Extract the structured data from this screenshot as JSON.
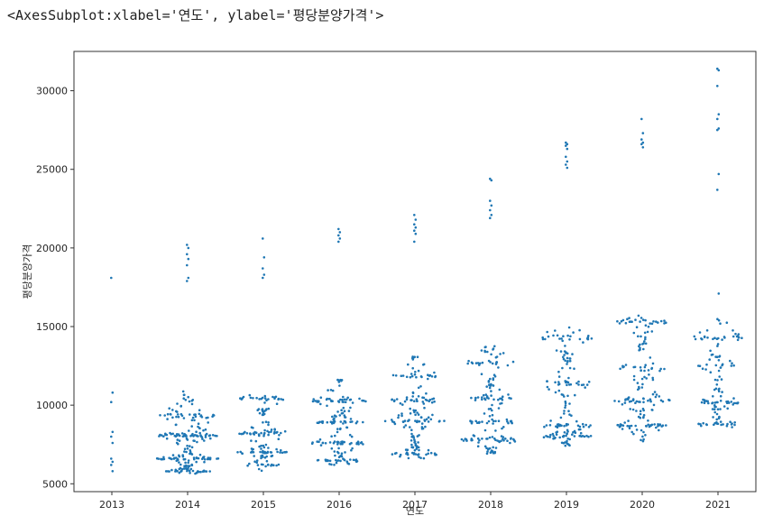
{
  "header": {
    "repr_text": "<AxesSubplot:xlabel='연도', ylabel='평당분양가격'>"
  },
  "colors": {
    "points": "#1f77b4",
    "frame": "#333333",
    "text": "#262626"
  },
  "chart_data": {
    "type": "scatter",
    "subtype": "swarmplot",
    "xlabel": "연도",
    "ylabel": "평당분양가격",
    "categories": [
      "2013",
      "2014",
      "2015",
      "2016",
      "2017",
      "2018",
      "2019",
      "2020",
      "2021"
    ],
    "ylim": [
      4500,
      32500
    ],
    "yticks": [
      5000,
      10000,
      15000,
      20000,
      25000,
      30000
    ],
    "grid": false,
    "series": [
      {
        "category": "2013",
        "outliers": [
          18100,
          10800,
          10200,
          8300,
          8000,
          7600,
          6600,
          6400,
          6200,
          5800
        ],
        "clusters": []
      },
      {
        "category": "2014",
        "outliers": [
          20200,
          20000,
          19600,
          19300,
          18900,
          18100,
          17900
        ],
        "clusters": [
          {
            "min": 5600,
            "max": 6100,
            "count": 40,
            "peak": 5800
          },
          {
            "min": 6100,
            "max": 7000,
            "count": 60,
            "peak": 6600
          },
          {
            "min": 7000,
            "max": 8500,
            "count": 70,
            "peak": 8100
          },
          {
            "min": 8500,
            "max": 10900,
            "count": 55,
            "peak": 9300
          }
        ]
      },
      {
        "category": "2015",
        "outliers": [
          20600,
          19400,
          18700,
          18300,
          18100
        ],
        "clusters": [
          {
            "min": 5800,
            "max": 6600,
            "count": 20,
            "peak": 6200
          },
          {
            "min": 6600,
            "max": 7400,
            "count": 45,
            "peak": 7000
          },
          {
            "min": 7400,
            "max": 9000,
            "count": 45,
            "peak": 8200
          },
          {
            "min": 9000,
            "max": 10700,
            "count": 40,
            "peak": 10400
          }
        ]
      },
      {
        "category": "2016",
        "outliers": [
          21200,
          21000,
          20800,
          20600,
          20400
        ],
        "clusters": [
          {
            "min": 6200,
            "max": 7000,
            "count": 35,
            "peak": 6500
          },
          {
            "min": 7000,
            "max": 8500,
            "count": 50,
            "peak": 7600
          },
          {
            "min": 8500,
            "max": 9600,
            "count": 40,
            "peak": 8900
          },
          {
            "min": 9600,
            "max": 11700,
            "count": 50,
            "peak": 10300
          }
        ]
      },
      {
        "category": "2017",
        "outliers": [
          22100,
          21800,
          21500,
          21300,
          21100,
          20900,
          20400
        ],
        "clusters": [
          {
            "min": 6600,
            "max": 7600,
            "count": 40,
            "peak": 6900
          },
          {
            "min": 7600,
            "max": 9500,
            "count": 55,
            "peak": 9000
          },
          {
            "min": 9500,
            "max": 11000,
            "count": 40,
            "peak": 10300
          },
          {
            "min": 11000,
            "max": 13100,
            "count": 35,
            "peak": 11900
          }
        ]
      },
      {
        "category": "2018",
        "outliers": [
          24400,
          24300,
          23000,
          22700,
          22400,
          22100,
          21900
        ],
        "clusters": [
          {
            "min": 6900,
            "max": 8200,
            "count": 55,
            "peak": 7800
          },
          {
            "min": 8200,
            "max": 9800,
            "count": 35,
            "peak": 8900
          },
          {
            "min": 9800,
            "max": 11500,
            "count": 40,
            "peak": 10400
          },
          {
            "min": 11500,
            "max": 13800,
            "count": 40,
            "peak": 12700
          }
        ]
      },
      {
        "category": "2019",
        "outliers": [
          26700,
          26600,
          26500,
          26300,
          25800,
          25500,
          25300,
          25100
        ],
        "clusters": [
          {
            "min": 7400,
            "max": 8300,
            "count": 45,
            "peak": 8000
          },
          {
            "min": 8300,
            "max": 10000,
            "count": 40,
            "peak": 8700
          },
          {
            "min": 10000,
            "max": 12500,
            "count": 40,
            "peak": 11400
          },
          {
            "min": 12500,
            "max": 15000,
            "count": 45,
            "peak": 14300
          }
        ]
      },
      {
        "category": "2020",
        "outliers": [
          28200,
          27300,
          26900,
          26700,
          26600,
          26400
        ],
        "clusters": [
          {
            "min": 7700,
            "max": 9200,
            "count": 45,
            "peak": 8700
          },
          {
            "min": 9200,
            "max": 11000,
            "count": 50,
            "peak": 10300
          },
          {
            "min": 11000,
            "max": 13500,
            "count": 35,
            "peak": 12300
          },
          {
            "min": 13500,
            "max": 15700,
            "count": 45,
            "peak": 15300
          }
        ]
      },
      {
        "category": "2021",
        "outliers": [
          31400,
          31300,
          30300,
          28500,
          28200,
          27600,
          27500,
          24700,
          23700,
          17100
        ],
        "clusters": [
          {
            "min": 8500,
            "max": 9600,
            "count": 30,
            "peak": 8800
          },
          {
            "min": 9600,
            "max": 11000,
            "count": 40,
            "peak": 10200
          },
          {
            "min": 11000,
            "max": 13000,
            "count": 25,
            "peak": 12500
          },
          {
            "min": 13000,
            "max": 15700,
            "count": 40,
            "peak": 14300
          }
        ]
      }
    ]
  }
}
